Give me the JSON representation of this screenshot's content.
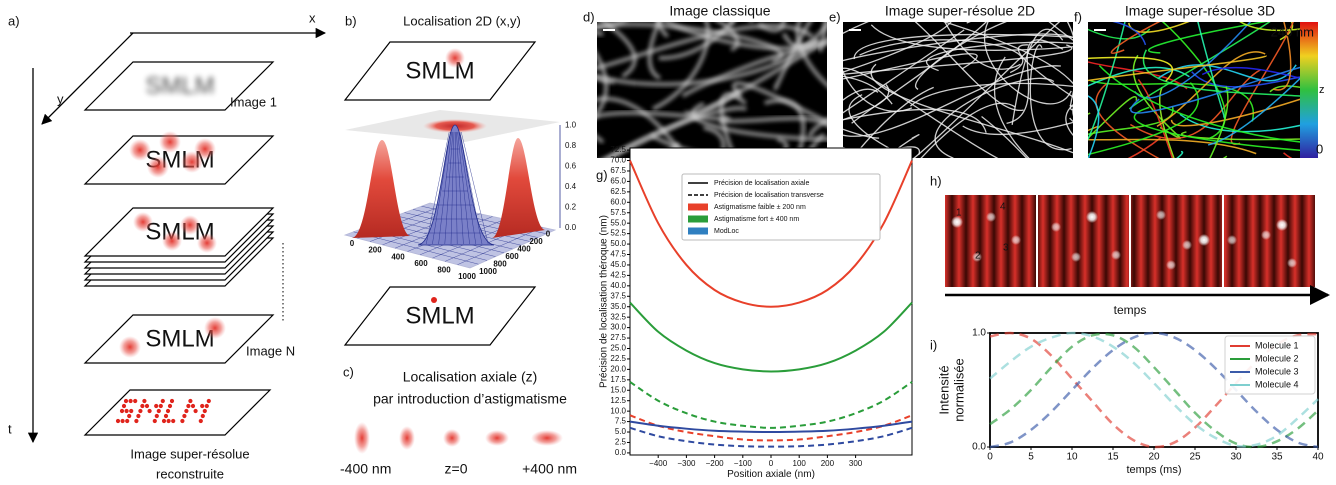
{
  "panels": {
    "a": {
      "label": "a)",
      "axis_x": "x",
      "axis_y": "y",
      "axis_t": "t",
      "smlm": [
        "SMLM",
        "SMLM",
        "SMLM",
        "SMLM"
      ],
      "image_1": "Image 1",
      "image_n": "Image N",
      "result": [
        "Image super-résolue",
        "reconstruite"
      ]
    },
    "b": {
      "label": "b)",
      "title": "Localisation 2D (x,y)",
      "smlm": [
        "SMLM",
        "SMLM"
      ],
      "axis_front": [
        "0",
        "200",
        "400",
        "600",
        "800",
        "1000"
      ],
      "axis_side": [
        "1000",
        "800",
        "600",
        "400",
        "200",
        "0"
      ],
      "axis_z": [
        "0.0",
        "0.2",
        "0.4",
        "0.6",
        "0.8",
        "1.0"
      ]
    },
    "c": {
      "label": "c)",
      "title": [
        "Localisation axiale (z)",
        "par introduction d’astigmatisme"
      ],
      "positions": [
        "-400 nm",
        "z=0",
        "+400 nm"
      ]
    },
    "d": {
      "label": "d)",
      "title": "Image classique"
    },
    "e": {
      "label": "e)",
      "title": "Image super-résolue 2D"
    },
    "f": {
      "label": "f)",
      "title": "Image super-résolue 3D",
      "colorbar": {
        "top": "240 nm",
        "axis": "z",
        "bottom": "0"
      }
    },
    "g": {
      "label": "g)"
    },
    "h": {
      "label": "h)",
      "molecules": [
        "1",
        "2",
        "3",
        "4"
      ],
      "axis": "temps"
    },
    "i": {
      "label": "i)"
    }
  },
  "chart_data": [
    {
      "type": "line",
      "xlabel": "Position axiale (nm)",
      "ylabel": "Précision de localisation théroque (nm)",
      "x": [
        -500,
        -400,
        -300,
        -200,
        -100,
        0,
        100,
        200,
        300,
        400,
        500
      ],
      "series": [
        {
          "color": "#e8402a",
          "dash": "solid",
          "values": [
            70,
            55,
            45,
            39,
            36,
            35,
            36,
            39,
            45,
            55,
            70
          ]
        },
        {
          "color": "#2a9d3a",
          "dash": "solid",
          "values": [
            36,
            29,
            24.5,
            21.5,
            20,
            19.5,
            20,
            21.5,
            24.5,
            29,
            36
          ]
        },
        {
          "color": "#e8402a",
          "dash": "dashed",
          "values": [
            9,
            6.5,
            5,
            4,
            3.2,
            3,
            3.2,
            4,
            5,
            6.5,
            9
          ]
        },
        {
          "color": "#2a9d3a",
          "dash": "dashed",
          "values": [
            17,
            12.5,
            9.5,
            7.5,
            6.5,
            6,
            6.5,
            7.5,
            9.5,
            12.5,
            17
          ]
        },
        {
          "color": "#2f4aa0",
          "dash": "solid",
          "values": [
            7.5,
            6.5,
            5.8,
            5.3,
            5.1,
            5,
            5.1,
            5.3,
            5.8,
            6.5,
            7.5
          ]
        },
        {
          "color": "#2f4aa0",
          "dash": "dashed",
          "values": [
            6,
            4,
            2.8,
            2,
            1.6,
            1.5,
            1.6,
            2,
            2.8,
            4,
            6
          ]
        }
      ],
      "legend": [
        {
          "label": "Précision de localisation axiale",
          "color": "#000000",
          "dash": "solid"
        },
        {
          "label": "Précision de localisation transverse",
          "color": "#000000",
          "dash": "dashed"
        },
        {
          "label": "Astigmatisme faible ± 200 nm",
          "color": "#e8402a",
          "dash": "patch"
        },
        {
          "label": "Astigmatisme fort ± 400 nm",
          "color": "#2a9d3a",
          "dash": "patch"
        },
        {
          "label": "ModLoc",
          "color": "#2f7fc0",
          "dash": "patch"
        }
      ],
      "xlim": [
        -500,
        500
      ],
      "xticks": [
        {
          "value": -400,
          "label": "−400"
        },
        {
          "value": -300,
          "label": "−300"
        },
        {
          "value": -200,
          "label": "−200"
        },
        {
          "value": -100,
          "label": "−100"
        },
        0,
        100,
        200,
        300
      ],
      "ylim": [
        -0.5,
        73
      ],
      "yticks": [
        {
          "value": 0,
          "label": "0.0"
        },
        2.5,
        {
          "value": 5,
          "label": "5.0"
        },
        7.5,
        {
          "value": 10,
          "label": "10.0"
        },
        12.5,
        {
          "value": 15,
          "label": "15.0"
        },
        17.5,
        {
          "value": 20,
          "label": "20.0"
        },
        22.5,
        {
          "value": 25,
          "label": "25.0"
        },
        27.5,
        {
          "value": 30,
          "label": "30.0"
        },
        32.5,
        {
          "value": 35,
          "label": "35.0"
        },
        37.5,
        {
          "value": 40,
          "label": "40.0"
        },
        42.5,
        {
          "value": 45,
          "label": "45.0"
        },
        47.5,
        {
          "value": 50,
          "label": "50.0"
        },
        52.5,
        {
          "value": 55,
          "label": "55.0"
        },
        57.5,
        {
          "value": 60,
          "label": "60.0"
        },
        62.5,
        {
          "value": 65,
          "label": "65.0"
        },
        67.5,
        {
          "value": 70,
          "label": "70.0"
        },
        72.5
      ]
    },
    {
      "type": "line",
      "xlabel": "temps (ms)",
      "ylabel": [
        "Intensité",
        "normalisée"
      ],
      "x": [
        0,
        2.5,
        5,
        7.5,
        10,
        12.5,
        15,
        17.5,
        20,
        22.5,
        25,
        27.5,
        30,
        32.5,
        35,
        37.5,
        40
      ],
      "series": [
        {
          "name": "Molecule 1",
          "color": "#e03c31",
          "dash": "dashed",
          "values": [
            0.97,
            1.0,
            0.95,
            0.8,
            0.6,
            0.4,
            0.2,
            0.06,
            0.0,
            0.04,
            0.17,
            0.36,
            0.56,
            0.75,
            0.9,
            0.98,
            0.99
          ]
        },
        {
          "name": "Molecule 2",
          "color": "#2a9d3a",
          "dash": "dashed",
          "values": [
            0.2,
            0.33,
            0.5,
            0.7,
            0.88,
            0.98,
            0.98,
            0.88,
            0.7,
            0.5,
            0.3,
            0.14,
            0.03,
            0.0,
            0.05,
            0.16,
            0.32
          ]
        },
        {
          "name": "Molecule 3",
          "color": "#3b5ba9",
          "dash": "dashed",
          "values": [
            0,
            0.04,
            0.15,
            0.31,
            0.5,
            0.69,
            0.85,
            0.96,
            1.0,
            0.96,
            0.85,
            0.69,
            0.5,
            0.31,
            0.15,
            0.04,
            0
          ]
        },
        {
          "name": "Molecule 4",
          "color": "#7fcfcf",
          "dash": "dashed",
          "values": [
            0.6,
            0.75,
            0.88,
            0.96,
            1.0,
            0.97,
            0.88,
            0.74,
            0.56,
            0.37,
            0.2,
            0.08,
            0.01,
            0.02,
            0.1,
            0.25,
            0.42
          ]
        }
      ],
      "legend": "upper right",
      "xlim": [
        0,
        40
      ],
      "xticks": [
        0,
        5,
        10,
        15,
        20,
        25,
        30,
        35,
        40
      ],
      "ylim": [
        0,
        1
      ],
      "yticks": [
        {
          "value": 0,
          "label": "0.0"
        },
        {
          "value": 1,
          "label": "1.0"
        }
      ]
    }
  ]
}
